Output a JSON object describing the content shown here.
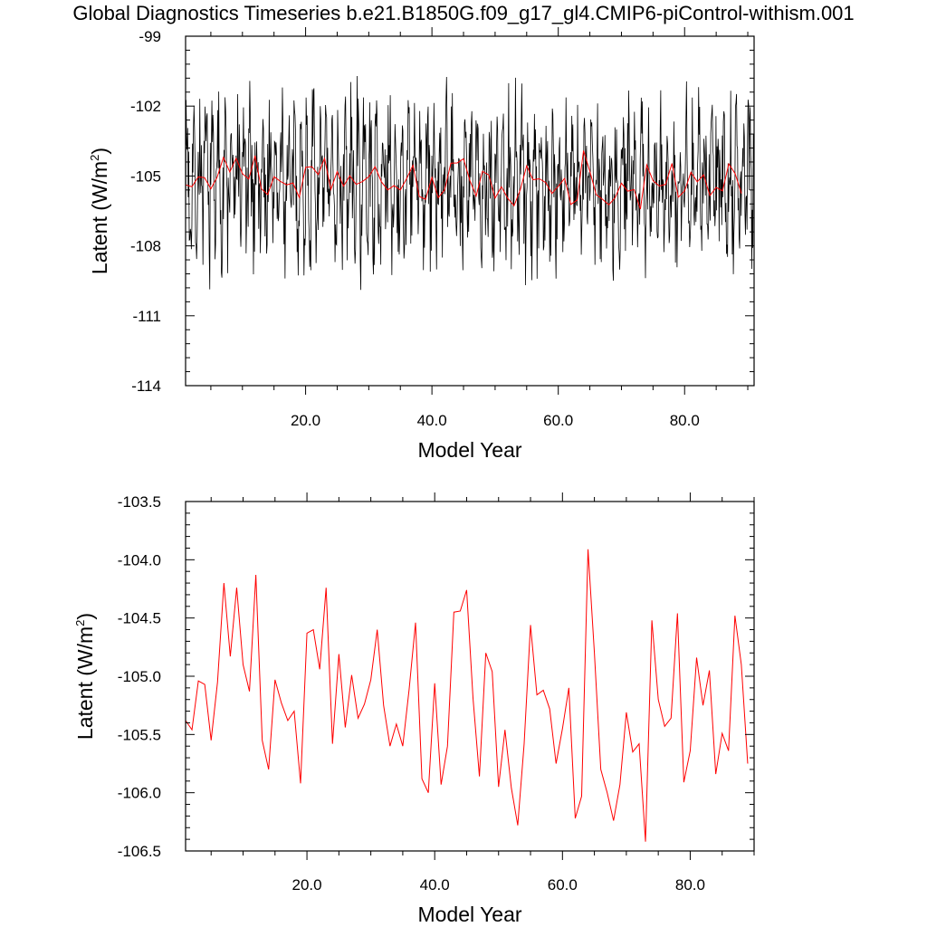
{
  "title": "Global Diagnostics Timeseries b.e21.B1850G.f09_g17_gl4.CMIP6-piControl-withism.001",
  "colors": {
    "monthly": "#000000",
    "annual": "#ff0000",
    "axis": "#000000"
  },
  "chart_data": [
    {
      "type": "line",
      "xlabel": "Model Year",
      "ylabel_prefix": "Latent (W/m",
      "ylabel_sup": "2",
      "ylabel_suffix": ")",
      "xlim": [
        1,
        91
      ],
      "ylim": [
        -114,
        -99
      ],
      "xticks": [
        20.0,
        40.0,
        60.0,
        80.0
      ],
      "xtick_labels": [
        "20.0",
        "40.0",
        "60.0",
        "80.0"
      ],
      "yticks": [
        -114,
        -111,
        -108,
        -105,
        -102,
        -99
      ],
      "ytick_labels": [
        "-114",
        "-111",
        "-108",
        "-105",
        "-102",
        "-99"
      ],
      "series": [
        {
          "name": "monthly",
          "color": "#000000",
          "generator": {
            "x_start": 1.0,
            "x_step": 0.0833,
            "count": 1080,
            "mean": -105.2,
            "seed": 7
          }
        },
        {
          "name": "annual",
          "color": "#ff0000",
          "x_start": 1,
          "x_step": 1,
          "values": [
            -105.38,
            -105.46,
            -105.04,
            -105.07,
            -105.55,
            -105.05,
            -104.2,
            -104.83,
            -104.24,
            -104.9,
            -105.13,
            -104.13,
            -105.55,
            -105.8,
            -105.03,
            -105.23,
            -105.38,
            -105.3,
            -105.92,
            -104.63,
            -104.6,
            -104.94,
            -104.24,
            -105.58,
            -104.81,
            -105.44,
            -104.99,
            -105.36,
            -105.24,
            -105.03,
            -104.6,
            -105.25,
            -105.6,
            -105.41,
            -105.6,
            -105.11,
            -104.54,
            -105.88,
            -106.0,
            -105.06,
            -105.93,
            -105.6,
            -104.45,
            -104.44,
            -104.26,
            -105.19,
            -105.86,
            -104.8,
            -104.96,
            -105.95,
            -105.46,
            -105.96,
            -106.28,
            -105.58,
            -104.56,
            -105.16,
            -105.12,
            -105.28,
            -105.75,
            -105.45,
            -105.1,
            -106.22,
            -106.03,
            -103.91,
            -104.8,
            -105.8,
            -106.0,
            -106.24,
            -105.93,
            -105.31,
            -105.65,
            -105.58,
            -106.42,
            -104.52,
            -105.2,
            -105.43,
            -105.36,
            -104.46,
            -105.91,
            -105.64,
            -104.84,
            -105.25,
            -104.95,
            -105.84,
            -105.49,
            -105.64,
            -104.48,
            -104.9,
            -105.75
          ]
        }
      ]
    },
    {
      "type": "line",
      "xlabel": "Model Year",
      "ylabel_prefix": "Latent (W/m",
      "ylabel_sup": "2",
      "ylabel_suffix": ")",
      "xlim": [
        1,
        90
      ],
      "ylim": [
        -106.5,
        -103.5
      ],
      "xticks": [
        20.0,
        40.0,
        60.0,
        80.0
      ],
      "xtick_labels": [
        "20.0",
        "40.0",
        "60.0",
        "80.0"
      ],
      "yticks": [
        -106.5,
        -106.0,
        -105.5,
        -105.0,
        -104.5,
        -104.0,
        -103.5
      ],
      "ytick_labels": [
        "-106.5",
        "-106.0",
        "-105.5",
        "-105.0",
        "-104.5",
        "-104.0",
        "-103.5"
      ],
      "series": [
        {
          "name": "annual",
          "color": "#ff0000",
          "x_start": 1,
          "x_step": 1,
          "values": [
            -105.38,
            -105.46,
            -105.04,
            -105.07,
            -105.55,
            -105.05,
            -104.2,
            -104.83,
            -104.24,
            -104.9,
            -105.13,
            -104.13,
            -105.55,
            -105.8,
            -105.03,
            -105.23,
            -105.38,
            -105.3,
            -105.92,
            -104.63,
            -104.6,
            -104.94,
            -104.24,
            -105.58,
            -104.81,
            -105.44,
            -104.99,
            -105.36,
            -105.24,
            -105.03,
            -104.6,
            -105.25,
            -105.6,
            -105.41,
            -105.6,
            -105.11,
            -104.54,
            -105.88,
            -106.0,
            -105.06,
            -105.93,
            -105.6,
            -104.45,
            -104.44,
            -104.26,
            -105.19,
            -105.86,
            -104.8,
            -104.96,
            -105.95,
            -105.46,
            -105.96,
            -106.28,
            -105.58,
            -104.56,
            -105.16,
            -105.12,
            -105.28,
            -105.75,
            -105.45,
            -105.1,
            -106.22,
            -106.03,
            -103.91,
            -104.8,
            -105.8,
            -106.0,
            -106.24,
            -105.93,
            -105.31,
            -105.65,
            -105.58,
            -106.42,
            -104.52,
            -105.2,
            -105.43,
            -105.36,
            -104.46,
            -105.91,
            -105.64,
            -104.84,
            -105.25,
            -104.95,
            -105.84,
            -105.49,
            -105.64,
            -104.48,
            -104.9,
            -105.75
          ]
        }
      ]
    }
  ]
}
